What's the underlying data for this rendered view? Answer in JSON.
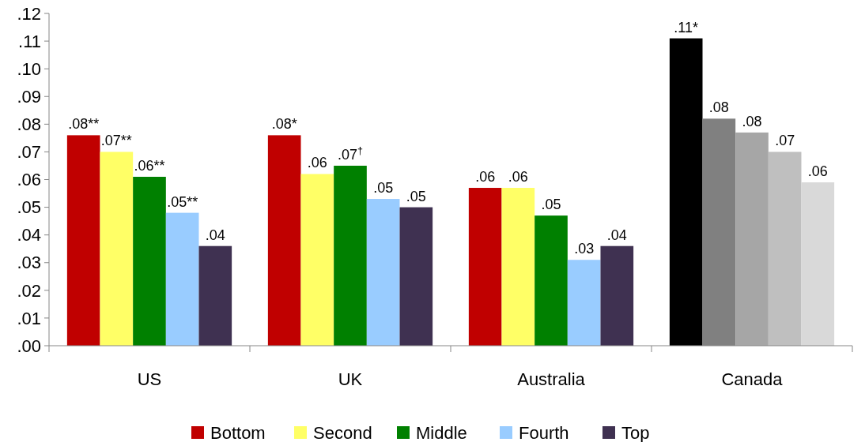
{
  "chart_data": {
    "type": "bar",
    "categories": [
      "US",
      "UK",
      "Australia",
      "Canada"
    ],
    "series": [
      {
        "name": "Bottom",
        "color": "#c00000",
        "colors": [
          "#c00000",
          "#c00000",
          "#c00000",
          "#000000"
        ],
        "values": [
          0.076,
          0.076,
          0.057,
          0.111
        ],
        "value_labels": [
          ".08**",
          ".08*",
          ".06",
          ".11*"
        ]
      },
      {
        "name": "Second",
        "color": "#ffff66",
        "colors": [
          "#ffff66",
          "#ffff66",
          "#ffff66",
          "#808080"
        ],
        "values": [
          0.07,
          0.062,
          0.057,
          0.082
        ],
        "value_labels": [
          ".07**",
          ".06",
          ".06",
          ".08"
        ]
      },
      {
        "name": "Middle",
        "color": "#008000",
        "colors": [
          "#008000",
          "#008000",
          "#008000",
          "#a6a6a6"
        ],
        "values": [
          0.061,
          0.065,
          0.047,
          0.077
        ],
        "value_labels": [
          ".06**",
          ".07$^{†}$",
          ".05",
          ".08"
        ]
      },
      {
        "name": "Fourth",
        "color": "#99ccff",
        "colors": [
          "#99ccff",
          "#99ccff",
          "#99ccff",
          "#bfbfbf"
        ],
        "values": [
          0.048,
          0.053,
          0.031,
          0.07
        ],
        "value_labels": [
          ".05**",
          ".05",
          ".03",
          ".07"
        ]
      },
      {
        "name": "Top",
        "color": "#3f3151",
        "colors": [
          "#3f3151",
          "#3f3151",
          "#3f3151",
          "#d9d9d9"
        ],
        "values": [
          0.036,
          0.05,
          0.036,
          0.059
        ],
        "value_labels": [
          ".04",
          ".05",
          ".04",
          ".06"
        ]
      }
    ],
    "ylim": [
      0,
      0.12
    ],
    "yticks": [
      {
        "value": 0,
        "label": ".00"
      },
      {
        "value": 0.01,
        "label": ".01"
      },
      {
        "value": 0.02,
        "label": ".02"
      },
      {
        "value": 0.03,
        "label": ".03"
      },
      {
        "value": 0.04,
        "label": ".04"
      },
      {
        "value": 0.05,
        "label": ".05"
      },
      {
        "value": 0.06,
        "label": ".06"
      },
      {
        "value": 0.07,
        "label": ".07"
      },
      {
        "value": 0.08,
        "label": ".08"
      },
      {
        "value": 0.09,
        "label": ".09"
      },
      {
        "value": 0.1,
        "label": ".10"
      },
      {
        "value": 0.11,
        "label": ".11"
      },
      {
        "value": 0.12,
        "label": ".12"
      }
    ],
    "grid": false,
    "legend": "bottom"
  }
}
